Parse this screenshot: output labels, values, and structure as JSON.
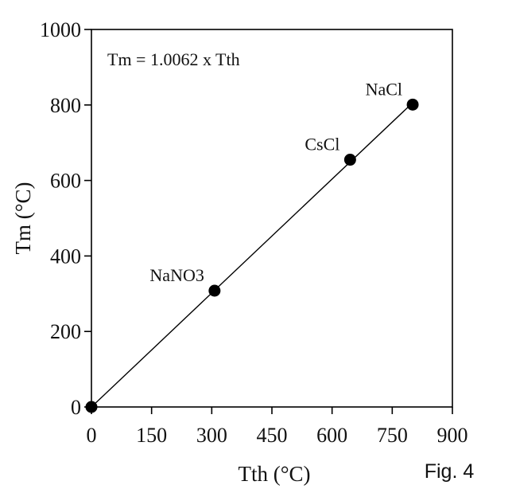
{
  "chart_data": {
    "type": "scatter",
    "title": "",
    "xlabel": "Tth (°C)",
    "ylabel": "Tm (°C)",
    "xlim": [
      0,
      900
    ],
    "ylim": [
      0,
      1000
    ],
    "xticks": [
      "0",
      "150",
      "300",
      "450",
      "600",
      "750",
      "900"
    ],
    "yticks": [
      "0",
      "200",
      "400",
      "600",
      "800",
      "1000"
    ],
    "grid": false,
    "points": [
      {
        "x": 0,
        "y": 0,
        "label": ""
      },
      {
        "x": 307,
        "y": 308,
        "label": "NaNO3"
      },
      {
        "x": 645,
        "y": 655,
        "label": "CsCl"
      },
      {
        "x": 801,
        "y": 801,
        "label": "NaCl"
      }
    ],
    "fit_line": {
      "slope": 1.0062,
      "x_range": [
        0,
        801
      ]
    },
    "annotation": "Tm = 1.0062 x Tth"
  },
  "figure_label": "Fig. 4",
  "colors": {
    "marker": "#000000",
    "line": "#000000",
    "axis": "#000000"
  }
}
